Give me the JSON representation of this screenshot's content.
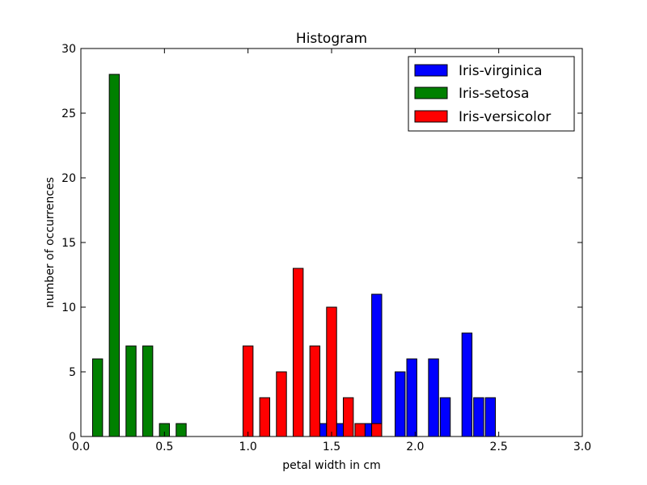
{
  "chart_data": {
    "type": "bar",
    "title": "Histogram",
    "xlabel": "petal width in cm",
    "ylabel": "number of occurrences",
    "xlim": [
      0.0,
      3.0
    ],
    "ylim": [
      0,
      30
    ],
    "xticks": [
      "0.0",
      "0.5",
      "1.0",
      "1.5",
      "2.0",
      "2.5",
      "3.0"
    ],
    "yticks": [
      "0",
      "5",
      "10",
      "15",
      "20",
      "25",
      "30"
    ],
    "grid": false,
    "legend_position": "top-right",
    "bin_width": 0.06,
    "series": [
      {
        "name": "Iris-virginica",
        "color": "#0000ff",
        "bins": [
          {
            "x": 1.44,
            "count": 1
          },
          {
            "x": 1.5,
            "count": 2
          },
          {
            "x": 1.56,
            "count": 1
          },
          {
            "x": 1.71,
            "count": 1
          },
          {
            "x": 1.77,
            "count": 11
          },
          {
            "x": 1.91,
            "count": 5
          },
          {
            "x": 1.98,
            "count": 6
          },
          {
            "x": 2.11,
            "count": 6
          },
          {
            "x": 2.18,
            "count": 3
          },
          {
            "x": 2.31,
            "count": 8
          },
          {
            "x": 2.38,
            "count": 3
          },
          {
            "x": 2.45,
            "count": 3
          }
        ]
      },
      {
        "name": "Iris-setosa",
        "color": "#008000",
        "bins": [
          {
            "x": 0.1,
            "count": 6
          },
          {
            "x": 0.2,
            "count": 28
          },
          {
            "x": 0.3,
            "count": 7
          },
          {
            "x": 0.4,
            "count": 7
          },
          {
            "x": 0.5,
            "count": 1
          },
          {
            "x": 0.6,
            "count": 1
          }
        ]
      },
      {
        "name": "Iris-versicolor",
        "color": "#ff0000",
        "bins": [
          {
            "x": 1.0,
            "count": 7
          },
          {
            "x": 1.1,
            "count": 3
          },
          {
            "x": 1.2,
            "count": 5
          },
          {
            "x": 1.3,
            "count": 13
          },
          {
            "x": 1.4,
            "count": 7
          },
          {
            "x": 1.5,
            "count": 10
          },
          {
            "x": 1.6,
            "count": 3
          },
          {
            "x": 1.67,
            "count": 1
          },
          {
            "x": 1.77,
            "count": 1
          }
        ]
      }
    ]
  }
}
